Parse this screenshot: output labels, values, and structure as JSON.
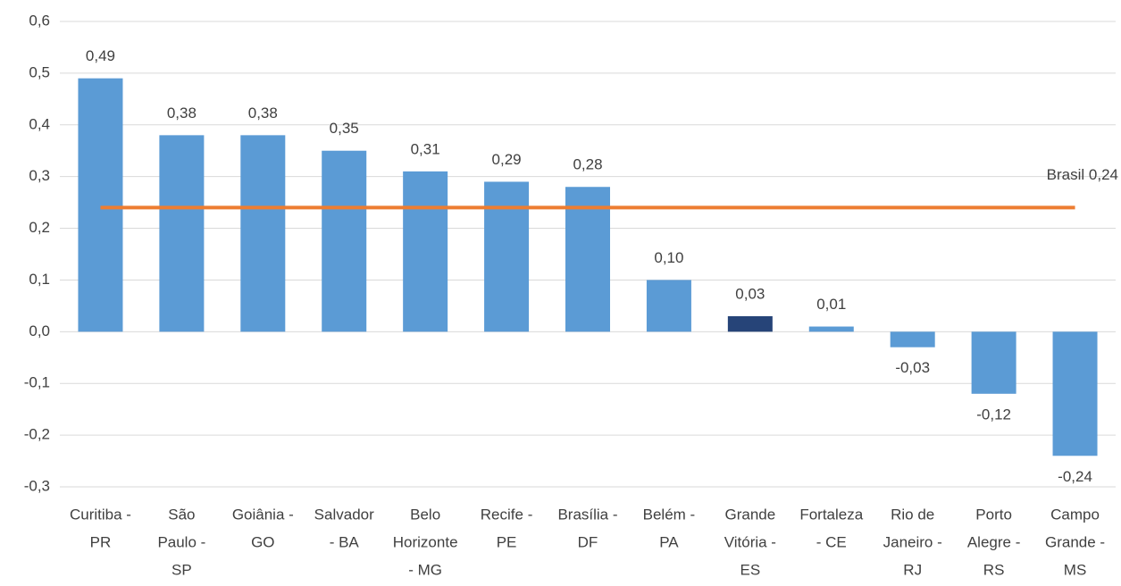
{
  "chart_data": {
    "type": "bar",
    "categories": [
      [
        "Curitiba -",
        "PR"
      ],
      [
        "São",
        "Paulo -",
        "SP"
      ],
      [
        "Goiânia -",
        "GO"
      ],
      [
        "Salvador",
        "- BA"
      ],
      [
        "Belo",
        "Horizonte",
        "- MG"
      ],
      [
        "Recife -",
        "PE"
      ],
      [
        "Brasília -",
        "DF"
      ],
      [
        "Belém -",
        "PA"
      ],
      [
        "Grande",
        "Vitória -",
        "ES"
      ],
      [
        "Fortaleza",
        "- CE"
      ],
      [
        "Rio de",
        "Janeiro -",
        "RJ"
      ],
      [
        "Porto",
        "Alegre -",
        "RS"
      ],
      [
        "Campo",
        "Grande -",
        "MS"
      ]
    ],
    "values": [
      0.49,
      0.38,
      0.38,
      0.35,
      0.31,
      0.29,
      0.28,
      0.1,
      0.03,
      0.01,
      -0.03,
      -0.12,
      -0.24
    ],
    "value_labels": [
      "0,49",
      "0,38",
      "0,38",
      "0,35",
      "0,31",
      "0,29",
      "0,28",
      "0,10",
      "0,03",
      "0,01",
      "-0,03",
      "-0,12",
      "-0,24"
    ],
    "colors": [
      "#5b9bd5",
      "#5b9bd5",
      "#5b9bd5",
      "#5b9bd5",
      "#5b9bd5",
      "#5b9bd5",
      "#5b9bd5",
      "#5b9bd5",
      "#264478",
      "#5b9bd5",
      "#5b9bd5",
      "#5b9bd5",
      "#5b9bd5"
    ],
    "reference_line": {
      "value": 0.24,
      "label": "Brasil 0,24",
      "color": "#ed7d31"
    },
    "ylim": [
      -0.3,
      0.6
    ],
    "yticks": [
      {
        "value": -0.3,
        "label": "-0,3"
      },
      {
        "value": -0.2,
        "label": "-0,2"
      },
      {
        "value": -0.1,
        "label": "-0,1"
      },
      {
        "value": 0,
        "label": "0,0"
      },
      {
        "value": 0.1,
        "label": "0,1"
      },
      {
        "value": 0.2,
        "label": "0,2"
      },
      {
        "value": 0.3,
        "label": "0,3"
      },
      {
        "value": 0.4,
        "label": "0,4"
      },
      {
        "value": 0.5,
        "label": "0,5"
      },
      {
        "value": 0.6,
        "label": "0,6"
      }
    ],
    "grid": true
  }
}
